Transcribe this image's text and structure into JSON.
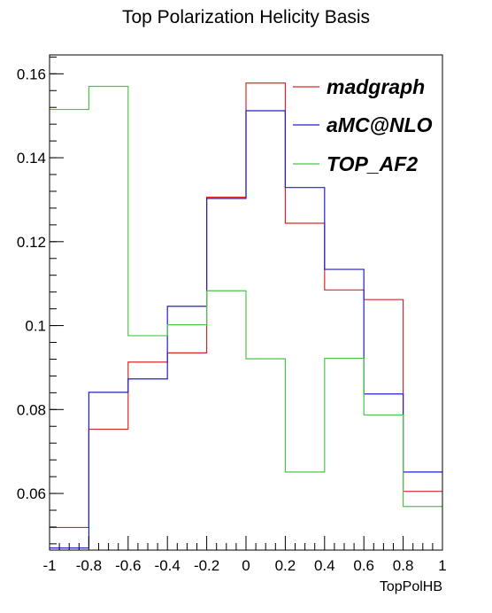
{
  "chart_data": {
    "type": "histogram",
    "title": "Top Polarization Helicity Basis",
    "xlabel": "TopPolHB",
    "ylabel": "",
    "xlim": [
      -1,
      1
    ],
    "ylim": [
      0.0465,
      0.1645
    ],
    "bin_edges": [
      -1,
      -0.8,
      -0.6,
      -0.4,
      -0.2,
      0,
      0.2,
      0.4,
      0.6,
      0.8,
      1
    ],
    "x_ticks": [
      "-1",
      "-0.8",
      "-0.6",
      "-0.4",
      "-0.2",
      "0",
      "0.2",
      "0.4",
      "0.6",
      "0.8",
      "1"
    ],
    "y_ticks": [
      {
        "value": 0.06,
        "label": "0.06"
      },
      {
        "value": 0.08,
        "label": "0.08"
      },
      {
        "value": 0.1,
        "label": "0.1"
      },
      {
        "value": 0.12,
        "label": "0.12"
      },
      {
        "value": 0.14,
        "label": "0.14"
      },
      {
        "value": 0.16,
        "label": "0.16"
      }
    ],
    "grid": false,
    "legend_position": "top-right",
    "series": [
      {
        "name": "madgraph",
        "color": "#d62728",
        "values": [
          0.0519,
          0.0753,
          0.0913,
          0.0935,
          0.1306,
          0.1578,
          0.1244,
          0.1085,
          0.1062,
          0.0605
        ]
      },
      {
        "name": "aMC@NLO",
        "color": "#1f1fcf",
        "values": [
          0.047,
          0.0841,
          0.0873,
          0.1046,
          0.1303,
          0.1512,
          0.1329,
          0.1134,
          0.0837,
          0.0651
        ]
      },
      {
        "name": "TOP_AF2",
        "color": "#4cc44c",
        "values": [
          0.1515,
          0.157,
          0.0976,
          0.1002,
          0.1083,
          0.0921,
          0.0651,
          0.0922,
          0.0787,
          0.0569
        ]
      }
    ]
  }
}
